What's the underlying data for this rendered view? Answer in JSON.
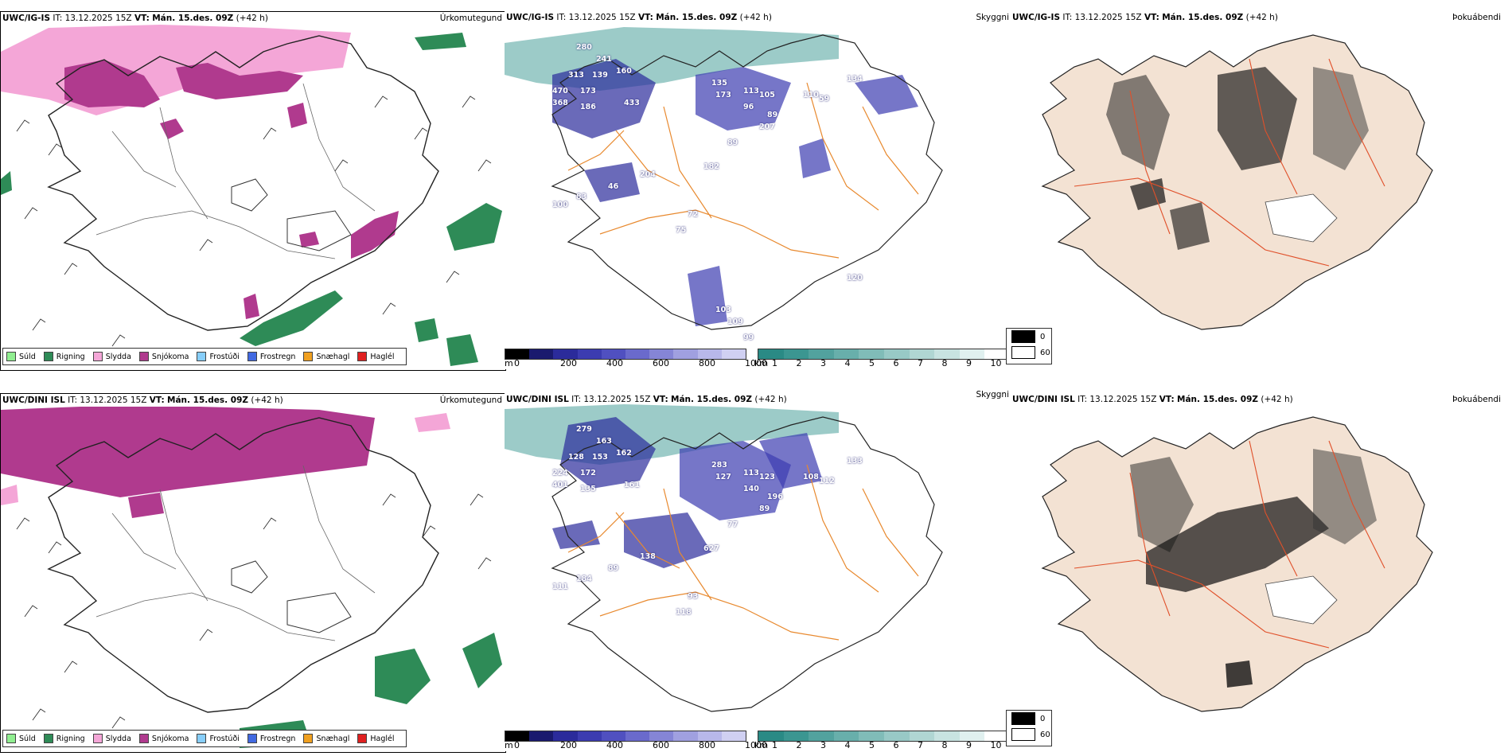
{
  "panels": [
    {
      "row": 0,
      "prefix": "UWC/IG-IS",
      "it_label": "IT:",
      "it_value": "13.12.2025 15Z",
      "vt_label": "VT:",
      "vt_value": "Mán. 15.des. 09Z",
      "lead": "(+42 h)",
      "kind_label": "Úrkomutegund"
    },
    {
      "row": 0,
      "prefix": "UWC/IG-IS",
      "it_label": "IT:",
      "it_value": "13.12.2025 15Z",
      "vt_label": "VT:",
      "vt_value": "Mán. 15.des. 09Z",
      "lead": "(+42 h)",
      "kind_label": "Skyggni",
      "values": [
        "280",
        "241",
        "313",
        "139",
        "160",
        "470",
        "173",
        "368",
        "186",
        "433",
        "135",
        "173",
        "113",
        "105",
        "96",
        "89",
        "110",
        "59",
        "134",
        "207",
        "89",
        "182",
        "204",
        "46",
        "83",
        "100",
        "72",
        "75",
        "103",
        "109",
        "99",
        "120"
      ]
    },
    {
      "row": 0,
      "prefix": "UWC/IG-IS",
      "it_label": "IT:",
      "it_value": "13.12.2025 15Z",
      "vt_label": "VT:",
      "vt_value": "Mán. 15.des. 09Z",
      "lead": "(+42 h)",
      "kind_label": "Þokuábendi"
    },
    {
      "row": 1,
      "prefix": "UWC/DINI ISL",
      "it_label": "IT:",
      "it_value": "13.12.2025 15Z",
      "vt_label": "VT:",
      "vt_value": "Mán. 15.des. 09Z",
      "lead": "(+42 h)",
      "kind_label": "Úrkomutegund"
    },
    {
      "row": 1,
      "prefix": "UWC/DINI ISL",
      "it_label": "IT:",
      "it_value": "13.12.2025 15Z",
      "vt_label": "VT:",
      "vt_value": "Mán. 15.des. 09Z",
      "lead": "(+42 h)",
      "kind_label": "Skyggni",
      "values": [
        "279",
        "163",
        "128",
        "153",
        "162",
        "224",
        "172",
        "401",
        "135",
        "161",
        "283",
        "127",
        "113",
        "123",
        "140",
        "196",
        "108",
        "112",
        "133",
        "89",
        "77",
        "627",
        "138",
        "89",
        "184",
        "111",
        "93",
        "118"
      ]
    },
    {
      "row": 1,
      "prefix": "UWC/DINI ISL",
      "it_label": "IT:",
      "it_value": "13.12.2025 15Z",
      "vt_label": "VT:",
      "vt_value": "Mán. 15.des. 09Z",
      "lead": "(+42 h)",
      "kind_label": "Þokuábendi"
    }
  ],
  "precip_legend": [
    {
      "label": "Súld",
      "color": "#90ee90"
    },
    {
      "label": "Rigning",
      "color": "#2e8b57"
    },
    {
      "label": "Slydda",
      "color": "#f4a6d7"
    },
    {
      "label": "Snjókoma",
      "color": "#b03a8e"
    },
    {
      "label": "Frostúði",
      "color": "#87cefa"
    },
    {
      "label": "Frostregn",
      "color": "#4169e1"
    },
    {
      "label": "Snæhagl",
      "color": "#f0a020"
    },
    {
      "label": "Haglél",
      "color": "#e02020"
    }
  ],
  "height_bar": {
    "unit": "m",
    "ticks": [
      "0",
      "200",
      "400",
      "600",
      "800",
      "1000"
    ],
    "colors": [
      "#000000",
      "#1a1a6e",
      "#2b2b9b",
      "#3c3cb0",
      "#5050c0",
      "#6a6acc",
      "#8585d6",
      "#a0a0e0",
      "#b8b8ea",
      "#d0d0f2"
    ]
  },
  "vis_bar": {
    "unit": "km",
    "ticks": [
      "1",
      "2",
      "3",
      "4",
      "5",
      "6",
      "7",
      "8",
      "9",
      "10"
    ],
    "colors": [
      "#2a8a85",
      "#3b9691",
      "#52a29e",
      "#68afab",
      "#80bcb8",
      "#98c9c6",
      "#b0d6d3",
      "#c8e3e1",
      "#e0f0ef",
      "#ffffff"
    ]
  },
  "cloud_legend": [
    {
      "label": "0",
      "color": "#000000"
    },
    {
      "label": "60",
      "color": "#ffffff"
    }
  ],
  "colors": {
    "land_fog": "#f3e2d3",
    "roads_fog": "#e0502a",
    "roads_vis": "#e8892e",
    "coast": "#222222",
    "snow": "#b03a8e",
    "sleet": "#f4a6d7",
    "rain": "#2e8b57",
    "vis_band": "#5aa9a3"
  }
}
